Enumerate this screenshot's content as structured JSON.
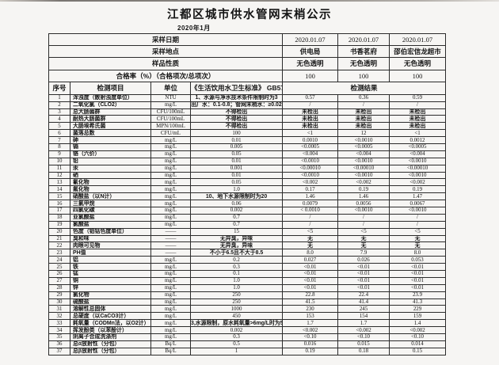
{
  "page": {
    "title": "江都区城市供水管网末梢公示",
    "subtitle": "2020年1月"
  },
  "info": {
    "rows": [
      {
        "label": "采样日期",
        "values": [
          "2020.01.07",
          "2020.01.07",
          "2020.01.07"
        ]
      },
      {
        "label": "采样地点",
        "values": [
          "供电局",
          "书香茗府",
          "邵伯宏信龙超市"
        ]
      },
      {
        "label": "样品性质",
        "values": [
          "无色透明",
          "无色透明",
          "无色透明"
        ]
      },
      {
        "label": "合格率（%）（合格项次/总项次）",
        "values": [
          "100",
          "100",
          "100"
        ]
      }
    ]
  },
  "table": {
    "headers": {
      "seq": "序号",
      "item": "检测项目",
      "unit": "单位",
      "standard": "《生活饮用水卫生标准》 GB5749",
      "result": "检测结果"
    },
    "rows": [
      [
        "1",
        "浑浊度（散射浊度单位）",
        "NTU",
        "1、水源与净水技术条件限制时为3",
        "0.57",
        "0.36",
        "0.59"
      ],
      [
        "2",
        "二氧化氯（CLO2）",
        "mg/L",
        "出厂水：0.1-0.8；管网末梢水：≥0.02",
        "/",
        "/",
        "/"
      ],
      [
        "3",
        "总大肠菌群",
        "CFU/100mL",
        "不得检出",
        "未检出",
        "未检出",
        "未检出"
      ],
      [
        "4",
        "耐热大肠菌群",
        "CFU/100mL",
        "不得检出",
        "未检出",
        "未检出",
        "未检出"
      ],
      [
        "5",
        "大肠埃希氏菌",
        "MPN/100mL",
        "不得检出",
        "未检出",
        "未检出",
        "未检出"
      ],
      [
        "6",
        "菌落总数",
        "CFU/mL",
        "100",
        "<1",
        "12",
        "<1"
      ],
      [
        "7",
        "砷",
        "mg/L",
        "0.01",
        "0.0010",
        "<0.0010",
        "0.0012"
      ],
      [
        "8",
        "镉",
        "mg/L",
        "0.005",
        "<0.0005",
        "<0.0005",
        "<0.0005"
      ],
      [
        "9",
        "铬（六价）",
        "mg/L",
        "0.05",
        "<0.004",
        "<0.004",
        "<0.004"
      ],
      [
        "10",
        "铅",
        "mg/L",
        "0.01",
        "<0.0010",
        "<0.0010",
        "<0.0010"
      ],
      [
        "11",
        "汞",
        "mg/L",
        "0.001",
        "<0.00010",
        "<0.00010",
        "<0.00010"
      ],
      [
        "12",
        "硒",
        "mg/L",
        "0.01",
        "<0.0010",
        "<0.0010",
        "<0.0010"
      ],
      [
        "13",
        "氰化物",
        "mg/L",
        "0.05",
        "<0.002",
        "<0.002",
        "<0.002"
      ],
      [
        "14",
        "氟化物",
        "mg/L",
        "1.0",
        "0.17",
        "0.19",
        "0.19"
      ],
      [
        "15",
        "硝酸盐（以N计）",
        "mg/L",
        "10、地下水源限制时为20",
        "1.46",
        "1.46",
        "1.47"
      ],
      [
        "16",
        "三氯甲烷",
        "mg/L",
        "0.06",
        "0.0079",
        "0.0056",
        "0.0067"
      ],
      [
        "17",
        "四氯化碳",
        "mg/L",
        "0.002",
        "< 0.0010",
        "<0.0010",
        "<0.0010"
      ],
      [
        "18",
        "亚氯酸盐",
        "mg/L",
        "0.7",
        "/",
        "/",
        "/"
      ],
      [
        "19",
        "氯酸盐",
        "mg/L",
        "0.7",
        "/",
        "/",
        "/"
      ],
      [
        "20",
        "色度（铂钴色度单位）",
        "——",
        "15",
        "<5",
        "<5",
        "<5"
      ],
      [
        "21",
        "臭和味",
        "——",
        "无异臭，异味",
        "无",
        "无",
        "无"
      ],
      [
        "22",
        "肉眼可见物",
        "——",
        "无异臭，异味",
        "无",
        "无",
        "无"
      ],
      [
        "23",
        "PH值",
        "——",
        "不小于6.5且不大于8.5",
        "8.0",
        "7.9",
        "8.0"
      ],
      [
        "24",
        "铝",
        "mg/L",
        "0.2",
        "0.027",
        "0.026",
        "0.053"
      ],
      [
        "25",
        "铁",
        "mg/L",
        "0.3",
        "<0.01",
        "<0.01",
        "<0.01"
      ],
      [
        "26",
        "锰",
        "mg/L",
        "0.1",
        "<0.01",
        "<0.01",
        "<0.01"
      ],
      [
        "27",
        "铜",
        "mg/L",
        "1.0",
        "<0.01",
        "<0.01",
        "<0.01"
      ],
      [
        "28",
        "锌",
        "mg/L",
        "1.0",
        "<0.01",
        "<0.01",
        "<0.01"
      ],
      [
        "29",
        "氯化物",
        "mg/L",
        "250",
        "22.8",
        "22.4",
        "23.9"
      ],
      [
        "30",
        "硫酸盐",
        "mg/L",
        "250",
        "41.5",
        "41.4",
        "41.3"
      ],
      [
        "31",
        "溶解性总固体",
        "mg/L",
        "1000",
        "230",
        "245",
        "229"
      ],
      [
        "32",
        "总硬度（以CaCO3计）",
        "mg/L",
        "450",
        "153",
        "154",
        "159"
      ],
      [
        "33",
        "耗氧量（CODMn法，以O2计）",
        "mg/L",
        "3,水源限制，原水耗氧量>6mg/L时为5",
        "1.7",
        "1.7",
        "1.4"
      ],
      [
        "34",
        "挥发酚类（以苯酚计）",
        "mg/L",
        "0.002",
        "<0.002",
        "<0.002",
        "<0.002"
      ],
      [
        "35",
        "阴离子合成洗涤剂",
        "mg/L",
        "0.3",
        "<0.10",
        "<0.10",
        "<0.10"
      ],
      [
        "36",
        "总α放射性（分包）",
        "Bq/L",
        "0.5",
        "0.016",
        "0.015",
        "0.014"
      ],
      [
        "37",
        "总β放射性（分包）",
        "Bq/L",
        "1",
        "0.19",
        "0.18",
        "0.15"
      ]
    ]
  }
}
